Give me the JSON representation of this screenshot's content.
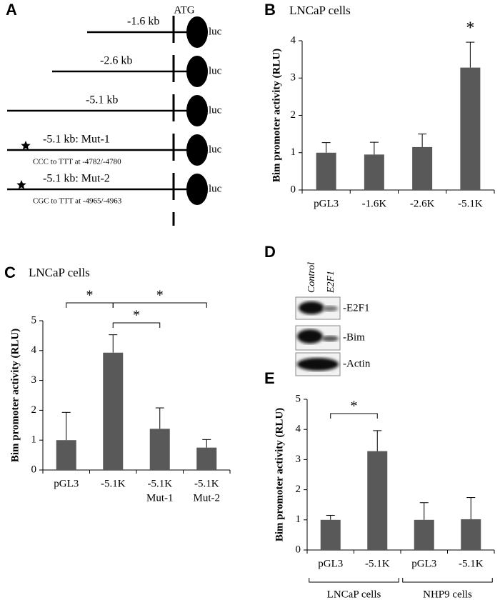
{
  "panel_letters": [
    "A",
    "B",
    "C",
    "D",
    "E"
  ],
  "panel_a": {
    "start_label": "ATG",
    "reporter_label": "luc",
    "constructs": [
      {
        "label": "-1.6 kb"
      },
      {
        "label": "-2.6 kb"
      },
      {
        "label": "-5.1 kb"
      },
      {
        "label": "-5.1 kb: Mut-1",
        "mutation": "CCC to TTT at -4782/-4780"
      },
      {
        "label": "-5.1 kb: Mut-2",
        "mutation": "CGC to TTT at -4965/-4963"
      }
    ]
  },
  "panel_d": {
    "lanes": [
      "Control",
      "E2F1"
    ],
    "bands": [
      "-E2F1",
      "-Bim",
      "-Actin"
    ]
  },
  "chart_data": [
    {
      "type": "bar",
      "title": "LNCaP cells",
      "y_label": "Bim promoter activity (RLU)",
      "categories": [
        [
          "pGL3"
        ],
        [
          "-1.6K"
        ],
        [
          "-2.6K"
        ],
        [
          "-5.1K"
        ]
      ],
      "values": [
        1.0,
        0.95,
        1.15,
        3.28
      ],
      "errors": [
        0.27,
        0.33,
        0.35,
        0.68
      ],
      "color": "#595959",
      "ylim": [
        0,
        4
      ],
      "yticks": [
        0,
        1,
        2,
        3,
        4
      ],
      "annotations": [
        "*"
      ]
    },
    {
      "type": "bar",
      "title": "LNCaP cells",
      "y_label": "Bim promoter activity (RLU)",
      "categories": [
        [
          "pGL3"
        ],
        [
          "-5.1K"
        ],
        [
          "-5.1K",
          "Mut-1"
        ],
        [
          "-5.1K",
          "Mut-2"
        ]
      ],
      "values": [
        1.0,
        3.93,
        1.38,
        0.75
      ],
      "errors": [
        0.93,
        0.6,
        0.7,
        0.27
      ],
      "color": "#595959",
      "ylim": [
        0,
        5
      ],
      "yticks": [
        0,
        1,
        2,
        3,
        4,
        5
      ],
      "annotations": [
        "*",
        "*",
        "*"
      ]
    },
    {
      "type": "bar",
      "y_label": "Bim promoter activity (RLU)",
      "categories": [
        [
          "pGL3"
        ],
        [
          "-5.1K"
        ],
        [
          "pGL3"
        ],
        [
          "-5.1K"
        ]
      ],
      "groups": [
        "LNCaP cells",
        "NHP9 cells"
      ],
      "values": [
        1.0,
        3.28,
        1.0,
        1.02
      ],
      "errors": [
        0.15,
        0.68,
        0.57,
        0.72
      ],
      "color": "#595959",
      "ylim": [
        0,
        5
      ],
      "yticks": [
        0,
        1,
        2,
        3,
        4,
        5
      ],
      "annotations": [
        "*"
      ]
    }
  ]
}
